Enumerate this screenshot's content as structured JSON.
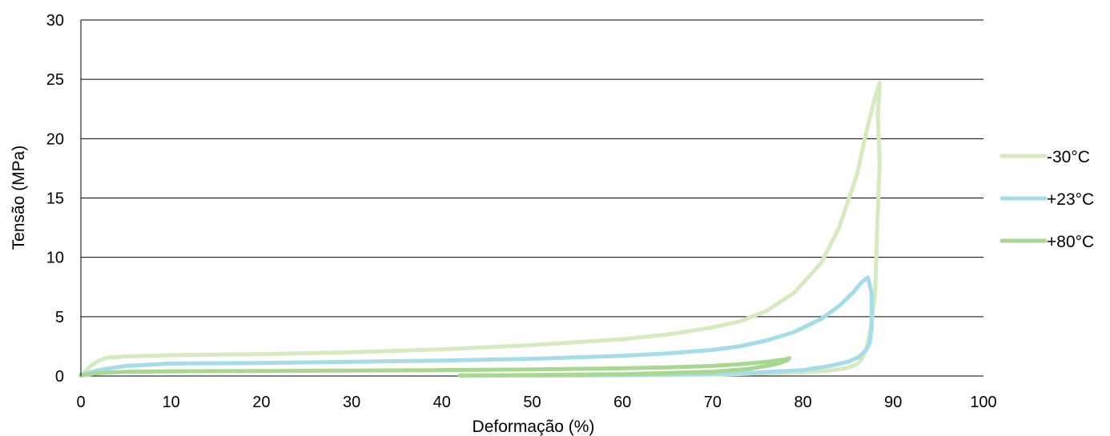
{
  "chart_data": {
    "type": "line",
    "title": "",
    "xlabel": "Deformação (%)",
    "ylabel": "Tensão (MPa)",
    "xlim": [
      0,
      100
    ],
    "ylim": [
      0,
      30
    ],
    "xticks": [
      "0",
      "10",
      "20",
      "30",
      "40",
      "50",
      "60",
      "70",
      "80",
      "90",
      "100"
    ],
    "yticks": [
      "0",
      "5",
      "10",
      "15",
      "20",
      "25",
      "30"
    ],
    "grid": true,
    "legend_position": "right",
    "series": [
      {
        "name": "-30°C",
        "color": "#d4ebc0",
        "x": [
          0,
          1,
          2,
          3,
          5,
          10,
          20,
          30,
          40,
          50,
          60,
          65,
          70,
          73,
          76,
          79,
          82,
          84,
          86,
          87,
          88,
          88.5,
          88.3,
          88.5,
          88.2,
          88,
          87.5,
          87,
          86.5,
          86,
          85,
          83,
          80,
          70,
          60,
          50,
          42
        ],
        "y": [
          0,
          0.8,
          1.3,
          1.55,
          1.65,
          1.75,
          1.85,
          2.0,
          2.25,
          2.6,
          3.1,
          3.5,
          4.1,
          4.6,
          5.5,
          7.0,
          9.5,
          12.5,
          17.0,
          20.5,
          23.5,
          24.7,
          22.0,
          18.0,
          12.0,
          7.0,
          4.0,
          2.2,
          1.4,
          1.0,
          0.7,
          0.45,
          0.3,
          0.12,
          0.06,
          0.03,
          0.02
        ]
      },
      {
        "name": "+23°C",
        "color": "#a4dcea",
        "x": [
          0,
          2,
          5,
          10,
          20,
          30,
          40,
          50,
          60,
          65,
          70,
          73,
          76,
          79,
          82,
          84,
          85.5,
          86.5,
          87.2,
          87.6,
          87.6,
          87.4,
          87.0,
          86.2,
          85.0,
          83.0,
          80.0,
          75,
          70,
          60,
          50
        ],
        "y": [
          0.1,
          0.5,
          0.85,
          1.05,
          1.1,
          1.2,
          1.3,
          1.45,
          1.7,
          1.9,
          2.2,
          2.5,
          3.0,
          3.7,
          4.8,
          5.9,
          7.0,
          7.9,
          8.3,
          7.0,
          4.0,
          2.8,
          2.2,
          1.6,
          1.2,
          0.85,
          0.5,
          0.3,
          0.18,
          0.08,
          0.05
        ]
      },
      {
        "name": "+80°C",
        "color": "#a8d890",
        "x": [
          0,
          2,
          5,
          10,
          20,
          30,
          40,
          50,
          60,
          65,
          70,
          73,
          76,
          78,
          78.5,
          78.3,
          77.5,
          76,
          74,
          70,
          60,
          50,
          42
        ],
        "y": [
          0.05,
          0.25,
          0.35,
          0.4,
          0.42,
          0.45,
          0.5,
          0.55,
          0.65,
          0.72,
          0.85,
          1.0,
          1.2,
          1.4,
          1.5,
          1.35,
          1.1,
          0.85,
          0.6,
          0.35,
          0.15,
          0.08,
          0.05
        ]
      }
    ]
  }
}
